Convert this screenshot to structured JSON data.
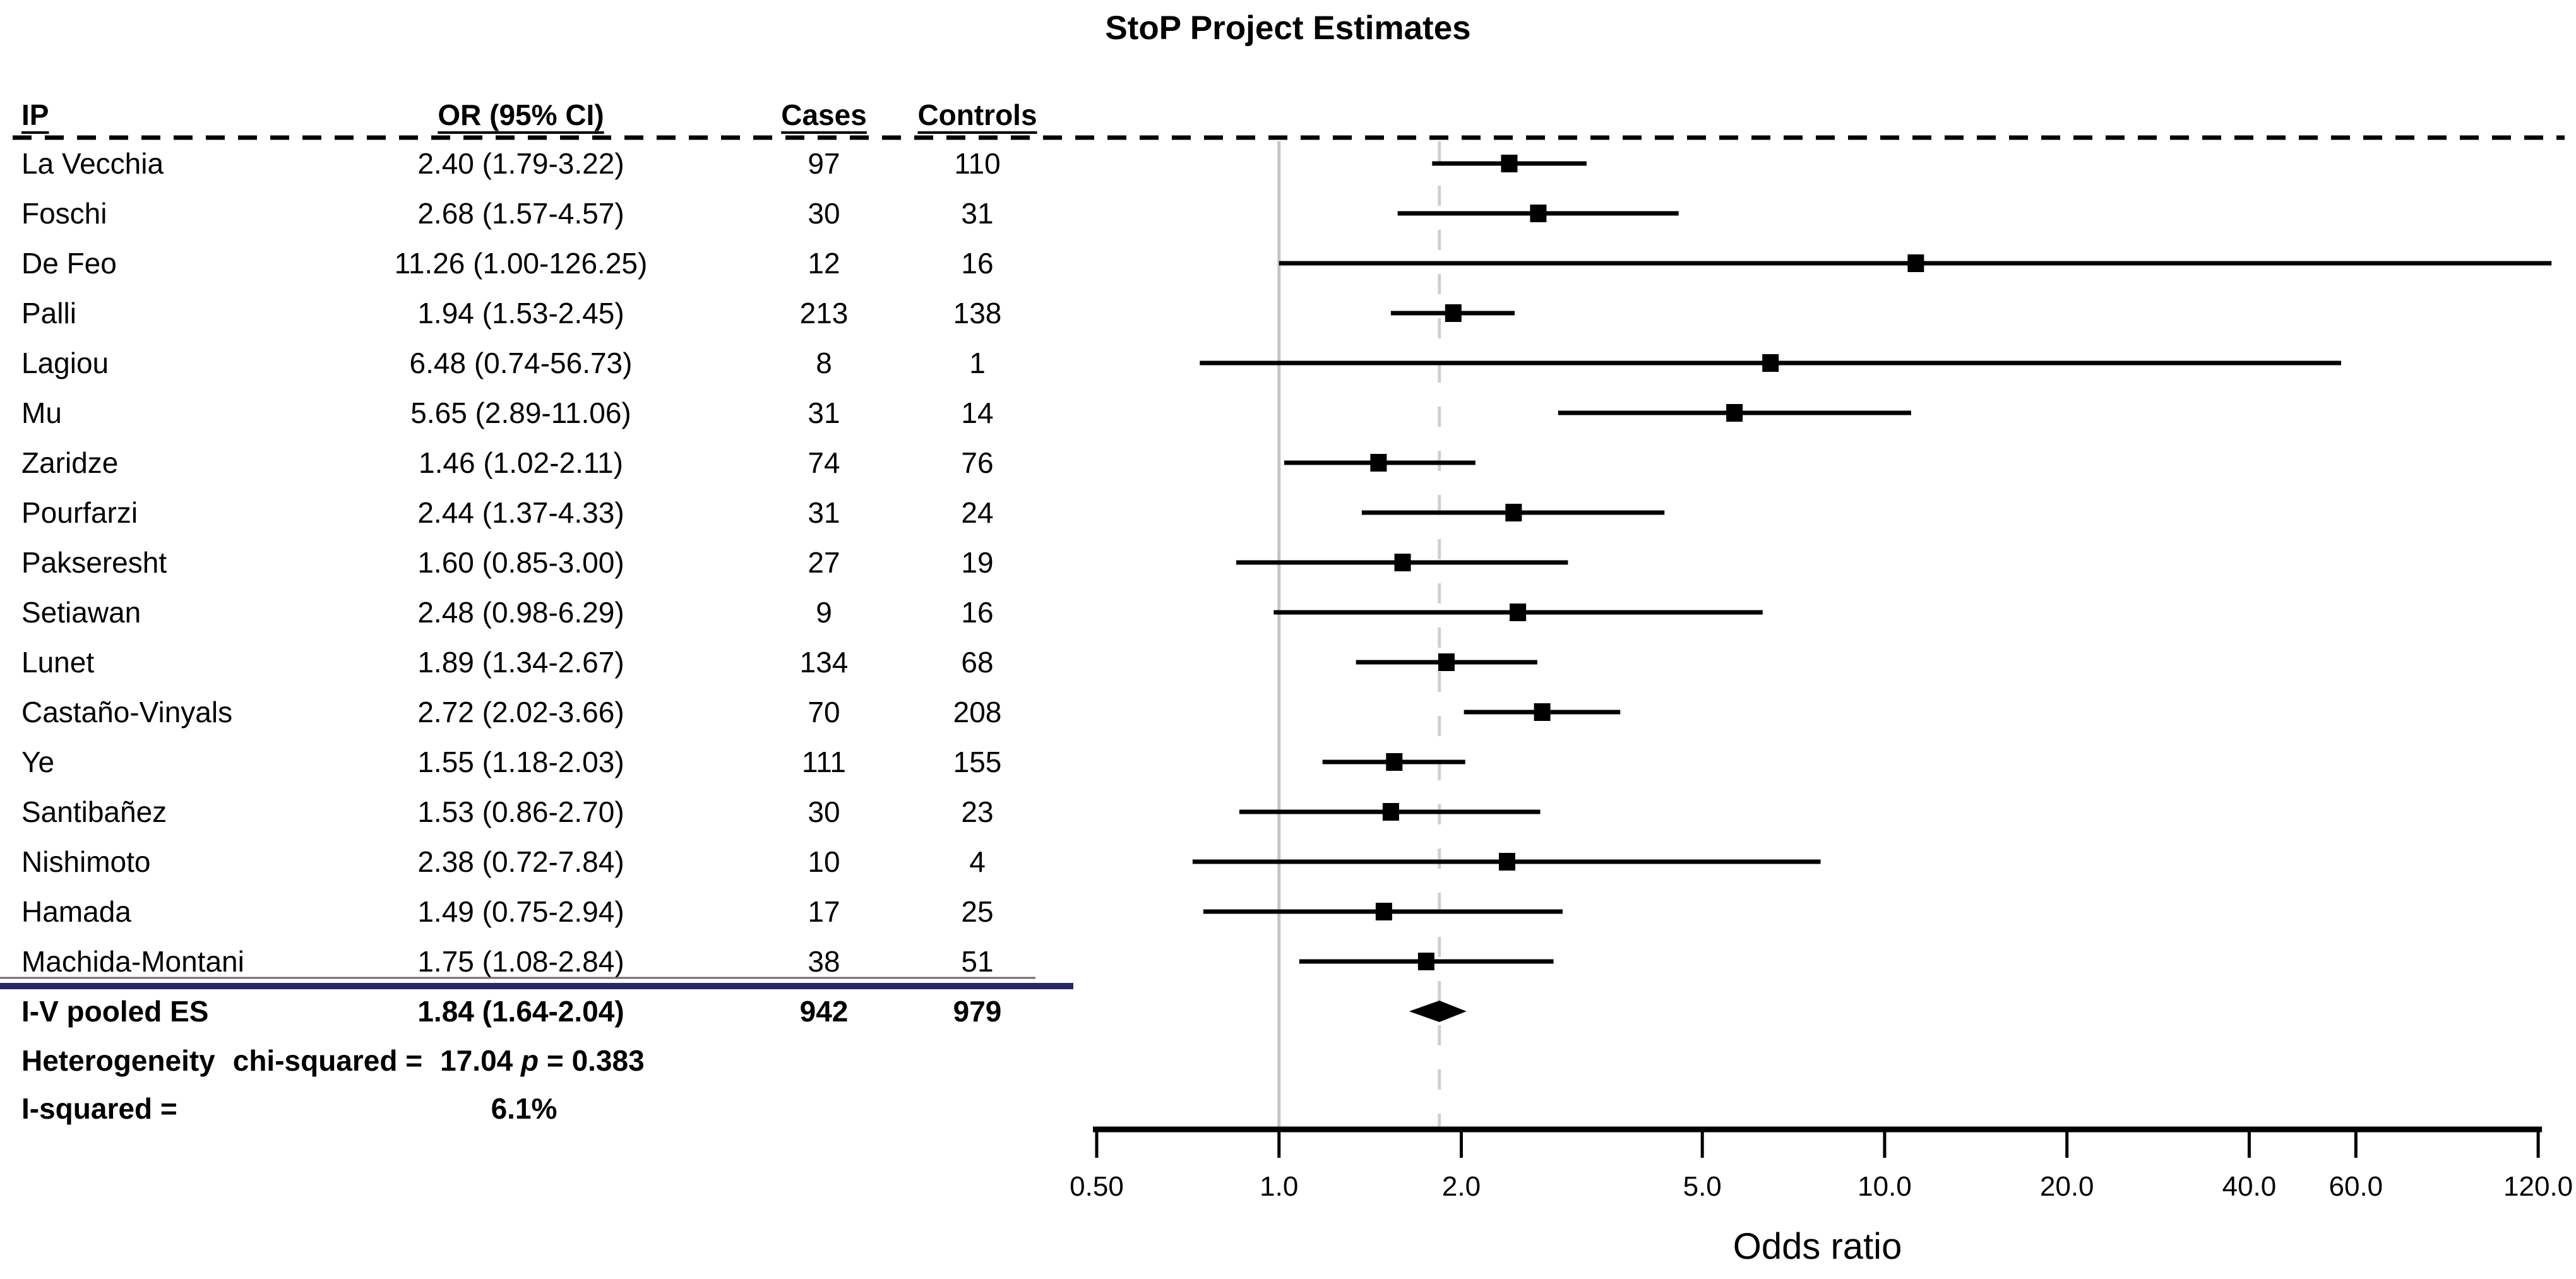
{
  "title": "StoP Project Estimates",
  "table": {
    "headers": {
      "ip": "IP",
      "or_ci": "OR (95% CI)",
      "cases": "Cases",
      "controls": "Controls"
    }
  },
  "stats": {
    "heterogeneity_prefix": "Heterogeneity",
    "heterogeneity_mid": "chi-squared =",
    "chi_squared": "17.04",
    "p_symbol": "p",
    "p_value": "= 0.383",
    "i_squared_label": "I-squared  =",
    "i_squared_value": "6.1%"
  },
  "axis": {
    "label": "Odds ratio",
    "tick_labels": [
      "0.50",
      "1.0",
      "2.0",
      "5.0",
      "10.0",
      "20.0",
      "40.0",
      "60.0",
      "120.0"
    ],
    "tick_values": [
      0.5,
      1,
      2,
      5,
      10,
      20,
      40,
      60,
      120
    ]
  },
  "colors": {
    "text": "#000000",
    "reference_line": "#c4c4c4",
    "pooled_dashed_line": "#cfcfcf",
    "pooled_rule_navy": "#26266b",
    "table_bottom_rule": "#6b6b6b",
    "marker": "#000000"
  },
  "chart_data": {
    "type": "scatter",
    "subtype": "forest_plot",
    "title": "StoP Project Estimates",
    "xlabel": "Odds ratio",
    "x_scale": "log",
    "x_ticks": [
      0.5,
      1,
      2,
      5,
      10,
      20,
      40,
      60,
      120
    ],
    "x_tick_labels": [
      "0.50",
      "1.0",
      "2.0",
      "5.0",
      "10.0",
      "20.0",
      "40.0",
      "60.0",
      "120.0"
    ],
    "xlim": [
      0.5,
      130
    ],
    "reference_line_x": 1.0,
    "pooled_dashed_line_x": 1.84,
    "studies": [
      {
        "name": "La Vecchia",
        "or": 2.4,
        "ci_low": 1.79,
        "ci_high": 3.22,
        "cases": 97,
        "controls": 110
      },
      {
        "name": "Foschi",
        "or": 2.68,
        "ci_low": 1.57,
        "ci_high": 4.57,
        "cases": 30,
        "controls": 31
      },
      {
        "name": "De Feo",
        "or": 11.26,
        "ci_low": 1.0,
        "ci_high": 126.25,
        "cases": 12,
        "controls": 16
      },
      {
        "name": "Palli",
        "or": 1.94,
        "ci_low": 1.53,
        "ci_high": 2.45,
        "cases": 213,
        "controls": 138
      },
      {
        "name": "Lagiou",
        "or": 6.48,
        "ci_low": 0.74,
        "ci_high": 56.73,
        "cases": 8,
        "controls": 1
      },
      {
        "name": "Mu",
        "or": 5.65,
        "ci_low": 2.89,
        "ci_high": 11.06,
        "cases": 31,
        "controls": 14
      },
      {
        "name": "Zaridze",
        "or": 1.46,
        "ci_low": 1.02,
        "ci_high": 2.11,
        "cases": 74,
        "controls": 76
      },
      {
        "name": "Pourfarzi",
        "or": 2.44,
        "ci_low": 1.37,
        "ci_high": 4.33,
        "cases": 31,
        "controls": 24
      },
      {
        "name": "Pakseresht",
        "or": 1.6,
        "ci_low": 0.85,
        "ci_high": 3.0,
        "cases": 27,
        "controls": 19
      },
      {
        "name": "Setiawan",
        "or": 2.48,
        "ci_low": 0.98,
        "ci_high": 6.29,
        "cases": 9,
        "controls": 16
      },
      {
        "name": "Lunet",
        "or": 1.89,
        "ci_low": 1.34,
        "ci_high": 2.67,
        "cases": 134,
        "controls": 68
      },
      {
        "name": "Castaño-Vinyals",
        "or": 2.72,
        "ci_low": 2.02,
        "ci_high": 3.66,
        "cases": 70,
        "controls": 208
      },
      {
        "name": "Ye",
        "or": 1.55,
        "ci_low": 1.18,
        "ci_high": 2.03,
        "cases": 111,
        "controls": 155
      },
      {
        "name": "Santibañez",
        "or": 1.53,
        "ci_low": 0.86,
        "ci_high": 2.7,
        "cases": 30,
        "controls": 23
      },
      {
        "name": "Nishimoto",
        "or": 2.38,
        "ci_low": 0.72,
        "ci_high": 7.84,
        "cases": 10,
        "controls": 4
      },
      {
        "name": "Hamada",
        "or": 1.49,
        "ci_low": 0.75,
        "ci_high": 2.94,
        "cases": 17,
        "controls": 25
      },
      {
        "name": "Machida-Montani",
        "or": 1.75,
        "ci_low": 1.08,
        "ci_high": 2.84,
        "cases": 38,
        "controls": 51
      }
    ],
    "pooled": {
      "name": "I-V pooled ES",
      "or": 1.84,
      "ci_low": 1.64,
      "ci_high": 2.04,
      "cases": 942,
      "controls": 979
    },
    "heterogeneity_chi_squared": 17.04,
    "heterogeneity_p": 0.383,
    "i_squared_percent": 6.1
  }
}
